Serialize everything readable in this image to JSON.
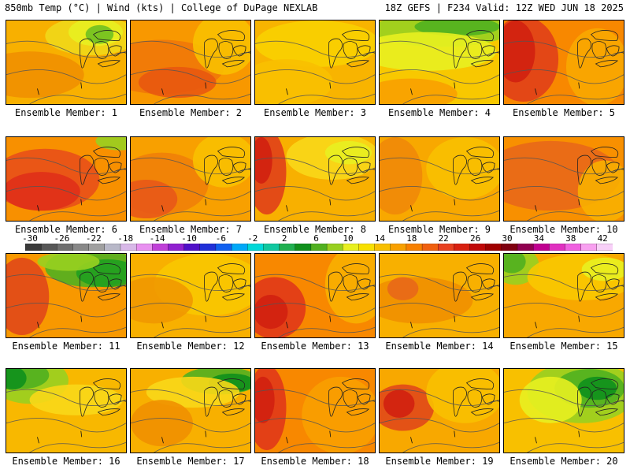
{
  "header": {
    "left": "850mb Temp (°C) | Wind (kts) | College of DuPage NEXLAB",
    "right": "18Z GEFS | F234 Valid: 12Z WED JUN 18 2025"
  },
  "colorbar": {
    "tick_labels": [
      "-30",
      "-26",
      "-22",
      "-18",
      "-14",
      "-10",
      "-6",
      "-2",
      "2",
      "6",
      "10",
      "14",
      "18",
      "22",
      "26",
      "30",
      "34",
      "38",
      "42"
    ],
    "colors": [
      "#3a3a3a",
      "#575757",
      "#6f6f6f",
      "#888888",
      "#a0a0a0",
      "#b8b8c8",
      "#d8b8e8",
      "#e890f0",
      "#c040d8",
      "#9020d0",
      "#5010c8",
      "#2030d8",
      "#1060f0",
      "#00a8f8",
      "#00d8d8",
      "#10c8a0",
      "#20b050",
      "#10901c",
      "#50b020",
      "#98d020",
      "#e8f020",
      "#f8e000",
      "#f8c000",
      "#f8a000",
      "#f88000",
      "#f06010",
      "#e84020",
      "#d82010",
      "#c00808",
      "#a00000",
      "#800010",
      "#900050",
      "#c00090",
      "#e030c0",
      "#f060e0",
      "#f8a0f0",
      "#f8d0f8"
    ]
  },
  "members": [
    {
      "caption": "Ensemble Member: 1"
    },
    {
      "caption": "Ensemble Member: 2"
    },
    {
      "caption": "Ensemble Member: 3"
    },
    {
      "caption": "Ensemble Member: 4"
    },
    {
      "caption": "Ensemble Member: 5"
    },
    {
      "caption": "Ensemble Member: 6"
    },
    {
      "caption": "Ensemble Member: 7"
    },
    {
      "caption": "Ensemble Member: 8"
    },
    {
      "caption": "Ensemble Member: 9"
    },
    {
      "caption": "Ensemble Member: 10"
    },
    {
      "caption": "Ensemble Member: 11"
    },
    {
      "caption": "Ensemble Member: 12"
    },
    {
      "caption": "Ensemble Member: 13"
    },
    {
      "caption": "Ensemble Member: 14"
    },
    {
      "caption": "Ensemble Member: 15"
    },
    {
      "caption": "Ensemble Member: 16"
    },
    {
      "caption": "Ensemble Member: 17"
    },
    {
      "caption": "Ensemble Member: 18"
    },
    {
      "caption": "Ensemble Member: 19"
    },
    {
      "caption": "Ensemble Member: 20"
    }
  ]
}
